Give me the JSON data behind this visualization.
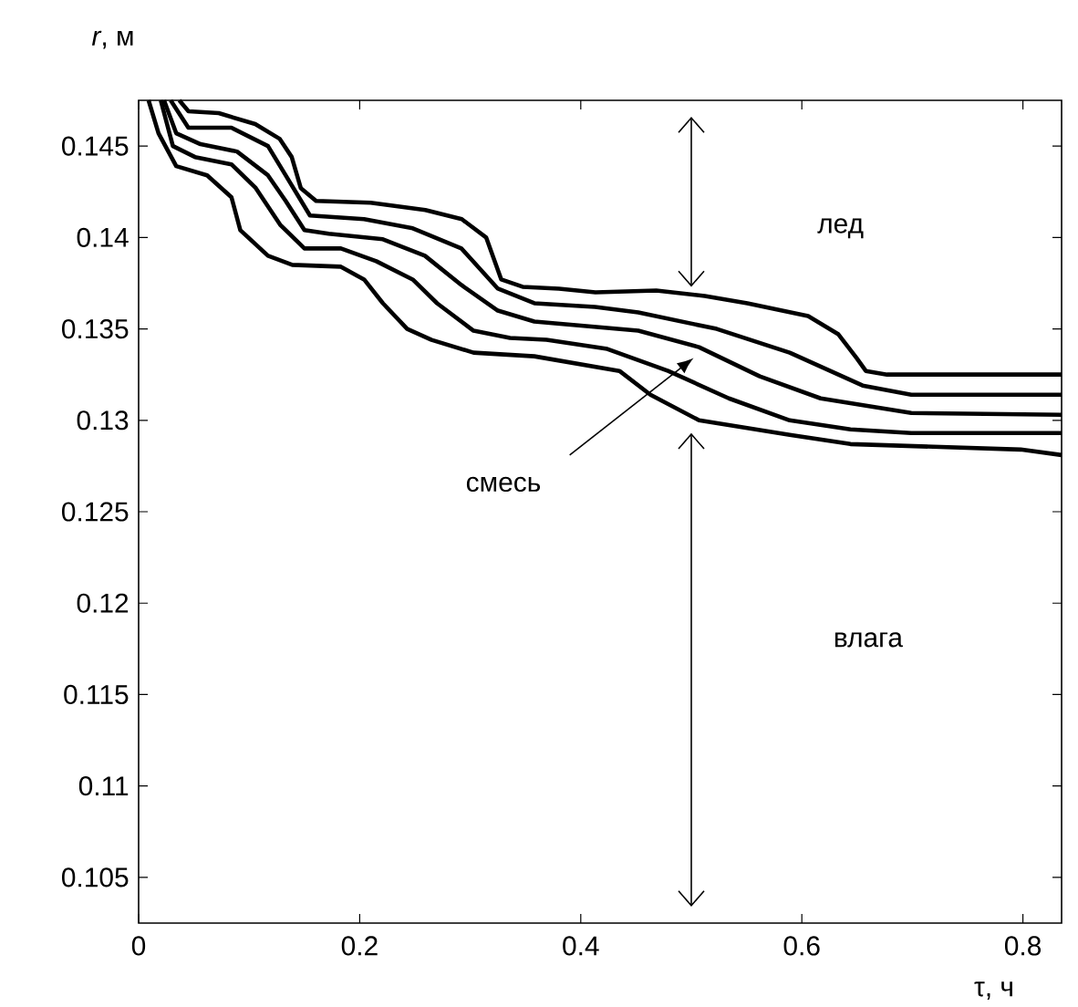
{
  "chart_data": {
    "type": "line",
    "xlabel": "τ, ч",
    "ylabel": "*r*, м",
    "xlim": [
      0,
      0.835
    ],
    "ylim": [
      0.1025,
      0.1475
    ],
    "xticks": [
      0,
      0.2,
      0.4,
      0.6,
      0.8
    ],
    "yticks": [
      0.105,
      0.11,
      0.115,
      0.12,
      0.125,
      0.13,
      0.135,
      0.14,
      0.145
    ],
    "annotations": [
      "лед",
      "смесь",
      "влага"
    ],
    "series": [
      {
        "color": "#000000",
        "x": [
          0.0368,
          0.0451,
          0.0725,
          0.1055,
          0.1275,
          0.1385,
          0.1467,
          0.1605,
          0.2099,
          0.2594,
          0.2924,
          0.3144,
          0.3281,
          0.3474,
          0.3803,
          0.4133,
          0.4683,
          0.5122,
          0.5507,
          0.6057,
          0.6331,
          0.6496,
          0.6579,
          0.6771,
          0.835
        ],
        "values": [
          0.1475,
          0.1469,
          0.1468,
          0.1462,
          0.1454,
          0.1444,
          0.1427,
          0.142,
          0.1419,
          0.1415,
          0.141,
          0.14,
          0.1377,
          0.1373,
          0.1372,
          0.137,
          0.1371,
          0.1368,
          0.1364,
          0.1357,
          0.1347,
          0.1334,
          0.1327,
          0.1325,
          0.1325
        ]
      },
      {
        "color": "#000000",
        "x": [
          0.029,
          0.045,
          0.084,
          0.117,
          0.133,
          0.155,
          0.204,
          0.248,
          0.292,
          0.325,
          0.358,
          0.413,
          0.452,
          0.523,
          0.589,
          0.655,
          0.699,
          0.835
        ],
        "values": [
          0.1475,
          0.146,
          0.146,
          0.145,
          0.1434,
          0.1412,
          0.141,
          0.1405,
          0.1394,
          0.1372,
          0.1364,
          0.1362,
          0.1359,
          0.135,
          0.1337,
          0.1319,
          0.1314,
          0.1314
        ]
      },
      {
        "color": "#000000",
        "x": [
          0.023,
          0.034,
          0.056,
          0.089,
          0.117,
          0.133,
          0.15,
          0.172,
          0.221,
          0.259,
          0.292,
          0.325,
          0.358,
          0.452,
          0.507,
          0.562,
          0.617,
          0.699,
          0.835
        ],
        "values": [
          0.1475,
          0.1457,
          0.1451,
          0.1447,
          0.1434,
          0.142,
          0.1404,
          0.1402,
          0.1399,
          0.139,
          0.1374,
          0.136,
          0.1354,
          0.1349,
          0.134,
          0.1324,
          0.1312,
          0.1304,
          0.1303
        ]
      },
      {
        "color": "#000000",
        "x": [
          0.02,
          0.031,
          0.051,
          0.084,
          0.106,
          0.128,
          0.15,
          0.183,
          0.215,
          0.248,
          0.27,
          0.303,
          0.336,
          0.369,
          0.424,
          0.479,
          0.534,
          0.589,
          0.644,
          0.699,
          0.835
        ],
        "values": [
          0.1475,
          0.145,
          0.1444,
          0.144,
          0.1427,
          0.1407,
          0.1394,
          0.1394,
          0.1387,
          0.1377,
          0.1364,
          0.1349,
          0.1345,
          0.1344,
          0.1339,
          0.1327,
          0.1312,
          0.13,
          0.1295,
          0.1293,
          0.1293
        ]
      },
      {
        "color": "#000000",
        "x": [
          0.009,
          0.018,
          0.034,
          0.062,
          0.084,
          0.092,
          0.117,
          0.139,
          0.183,
          0.204,
          0.221,
          0.243,
          0.265,
          0.303,
          0.358,
          0.435,
          0.463,
          0.507,
          0.589,
          0.644,
          0.798,
          0.835
        ],
        "values": [
          0.1475,
          0.1457,
          0.1439,
          0.1434,
          0.1422,
          0.1404,
          0.139,
          0.1385,
          0.1384,
          0.1377,
          0.1364,
          0.135,
          0.1344,
          0.1337,
          0.1335,
          0.1327,
          0.1314,
          0.13,
          0.1292,
          0.1287,
          0.1284,
          0.1281
        ]
      }
    ]
  }
}
